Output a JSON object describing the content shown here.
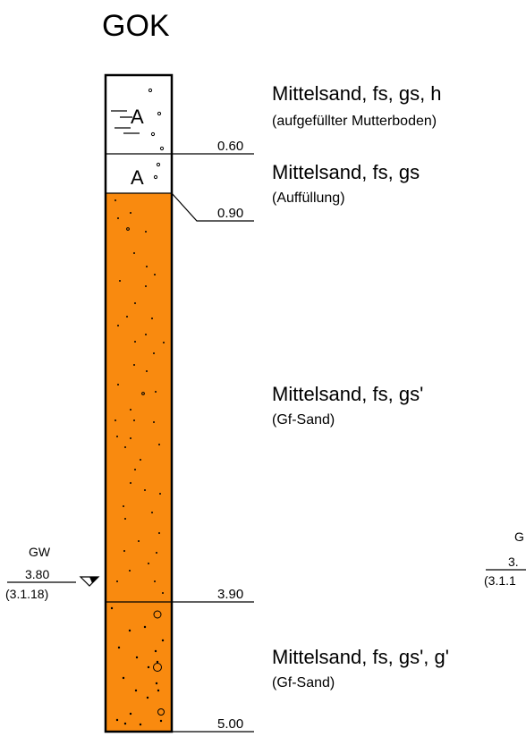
{
  "title": "GOK",
  "layers": [
    {
      "name": "Mittelsand, fs, gs, h",
      "note": "(aufgefüllter Mutterboden)",
      "symbol": "A",
      "depth_bottom": "0.60",
      "top_m": 0.0,
      "bottom_m": 0.6,
      "fill": "#ffffff"
    },
    {
      "name": "Mittelsand, fs, gs",
      "note": "(Auffüllung)",
      "symbol": "A",
      "depth_bottom": "0.90",
      "top_m": 0.6,
      "bottom_m": 0.9,
      "fill": "#ffffff"
    },
    {
      "name": "Mittelsand, fs, gs'",
      "note": "(Gf-Sand)",
      "depth_bottom": "3.90",
      "top_m": 0.9,
      "bottom_m": 3.9,
      "fill": "#f98a0f"
    },
    {
      "name": "Mittelsand, fs, gs', g'",
      "note": "(Gf-Sand)",
      "depth_bottom": "5.00",
      "top_m": 3.9,
      "bottom_m": 5.0,
      "fill": "#f98a0f"
    }
  ],
  "groundwater": [
    {
      "label": "GW",
      "depth": "3.80",
      "date": "(3.1.18)",
      "depth_m": 3.8
    }
  ],
  "clipped_groundwater": {
    "label": "G",
    "depth": "3.",
    "date": "(3.1.1"
  }
}
